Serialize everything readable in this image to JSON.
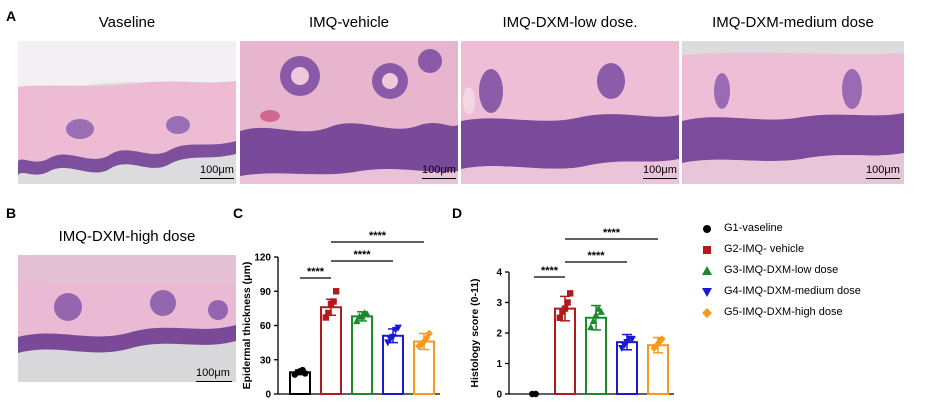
{
  "panels": {
    "a": {
      "label": "A",
      "images": [
        {
          "title": "Vaseline",
          "scale": "100μm"
        },
        {
          "title": "IMQ-vehicle",
          "scale": "100μm"
        },
        {
          "title": "IMQ-DXM-low  dose.",
          "scale": "100μm"
        },
        {
          "title": "IMQ-DXM-medium  dose",
          "scale": "100μm"
        }
      ]
    },
    "b": {
      "label": "B",
      "title": "IMQ-DXM-high dose",
      "scale": "100μm"
    },
    "c": {
      "label": "C"
    },
    "d": {
      "label": "D"
    }
  },
  "colors": {
    "g1": "#000000",
    "g2": "#b01b1b",
    "g3": "#1a8a2a",
    "g4": "#1a1acf",
    "g5": "#f59a1f",
    "tissue_pink": "#e9b9d2",
    "tissue_purple": "#7c4c9a",
    "background_gray": "#d9d8da"
  },
  "legend": [
    {
      "label": "G1-vaseline",
      "marker": "circle",
      "color": "#000000"
    },
    {
      "label": "G2-IMQ- vehicle",
      "marker": "square",
      "color": "#b01b1b"
    },
    {
      "label": "G3-IMQ-DXM-low dose",
      "marker": "triangle-up",
      "color": "#1a8a2a"
    },
    {
      "label": "G4-IMQ-DXM-medium dose",
      "marker": "triangle-down",
      "color": "#1a1acf"
    },
    {
      "label": "G5-IMQ-DXM-high dose",
      "marker": "diamond",
      "color": "#f59a1f"
    }
  ],
  "chart_data": [
    {
      "type": "bar",
      "ylabel": "Epidermal thickness (μm)",
      "ylim": [
        0,
        120
      ],
      "yticks": [
        0,
        30,
        60,
        90,
        120
      ],
      "categories": [
        "G1",
        "G2",
        "G3",
        "G4",
        "G5"
      ],
      "values": [
        19,
        76,
        68,
        51,
        46
      ],
      "errors": [
        2,
        7,
        4,
        6,
        7
      ],
      "points": [
        [
          17,
          19,
          20,
          21,
          18
        ],
        [
          67,
          71,
          79,
          81,
          90
        ],
        [
          64,
          68,
          68,
          71,
          70
        ],
        [
          45,
          48,
          50,
          56,
          58
        ],
        [
          42,
          43,
          46,
          49,
          53
        ]
      ],
      "significance": [
        {
          "from": 0,
          "to": 1,
          "label": "****"
        },
        {
          "from": 1,
          "to": 3,
          "label": "****"
        },
        {
          "from": 1,
          "to": 4,
          "label": "****"
        }
      ]
    },
    {
      "type": "bar",
      "ylabel": "Histology score (0-11)",
      "ylim": [
        0,
        4
      ],
      "yticks": [
        0,
        1,
        2,
        3,
        4
      ],
      "categories": [
        "G1",
        "G2",
        "G3",
        "G4",
        "G5"
      ],
      "values": [
        0,
        2.8,
        2.5,
        1.7,
        1.6
      ],
      "errors": [
        0,
        0.4,
        0.4,
        0.25,
        0.25
      ],
      "points": [
        [
          0,
          0
        ],
        [
          2.5,
          2.7,
          2.8,
          3.0,
          3.3
        ],
        [
          2.2,
          2.4,
          2.6,
          2.8,
          2.7
        ],
        [
          1.5,
          1.6,
          1.7,
          1.8,
          1.8
        ],
        [
          1.5,
          1.6,
          1.7,
          1.8
        ]
      ],
      "significance": [
        {
          "from": 0,
          "to": 1,
          "label": "****"
        },
        {
          "from": 1,
          "to": 3,
          "label": "****"
        },
        {
          "from": 1,
          "to": 4,
          "label": "****"
        }
      ]
    }
  ]
}
